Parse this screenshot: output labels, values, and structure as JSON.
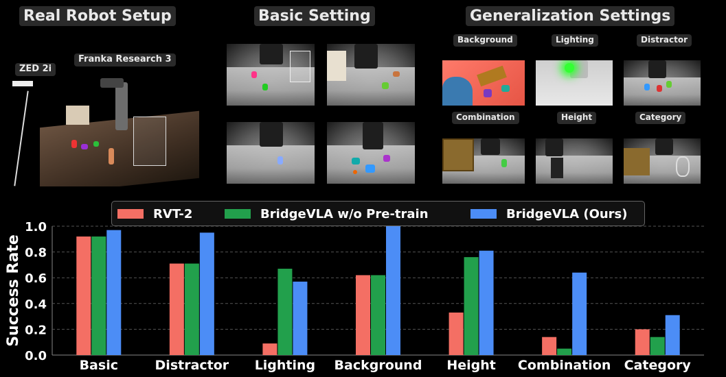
{
  "headings": {
    "setup": "Real Robot Setup",
    "basic": "Basic Setting",
    "generalization": "Generalization Settings"
  },
  "setup_labels": {
    "camera": "ZED 2i",
    "robot": "Franka Research 3"
  },
  "generalization_labels": [
    "Background",
    "Lighting",
    "Distractor",
    "Combination",
    "Height",
    "Category"
  ],
  "colors": {
    "rvt2": "#f46f64",
    "bridgevla_wo": "#22a04c",
    "bridgevla": "#4c8df6",
    "gridline": "#555555",
    "background": "#000000"
  },
  "chart_data": {
    "type": "bar",
    "categories": [
      "Basic",
      "Distractor",
      "Lighting",
      "Background",
      "Height",
      "Combination",
      "Category"
    ],
    "series": [
      {
        "name": "RVT-2",
        "values": [
          0.92,
          0.71,
          0.09,
          0.62,
          0.33,
          0.14,
          0.2
        ]
      },
      {
        "name": "BridgeVLA w/o Pre-train",
        "values": [
          0.92,
          0.71,
          0.67,
          0.62,
          0.76,
          0.05,
          0.14
        ]
      },
      {
        "name": "BridgeVLA (Ours)",
        "values": [
          0.97,
          0.95,
          0.57,
          1.0,
          0.81,
          0.64,
          0.31
        ]
      }
    ],
    "ylabel": "Success Rate",
    "ylim": [
      0,
      1.0
    ],
    "yticks": [
      "0.0",
      "0.2",
      "0.4",
      "0.6",
      "0.8",
      "1.0"
    ],
    "grid": true,
    "legend": "top"
  }
}
